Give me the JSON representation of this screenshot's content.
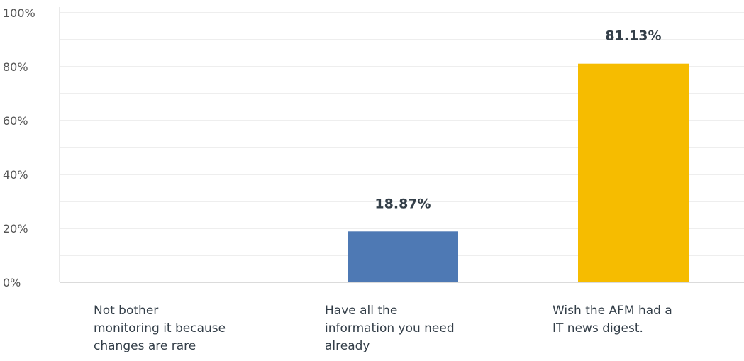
{
  "chart_data": {
    "type": "bar",
    "categories": [
      [
        "Not bother",
        "monitoring it because",
        "changes are rare"
      ],
      [
        "Have all the",
        "information you need",
        "already"
      ],
      [
        "Wish the AFM had a",
        "IT news digest."
      ]
    ],
    "values": [
      0,
      18.87,
      81.13
    ],
    "data_labels": [
      "",
      "18.87%",
      "81.13%"
    ],
    "colors": [
      "#4e79b4",
      "#4e79b4",
      "#f6bc00"
    ],
    "yticks": [
      "0%",
      "20%",
      "40%",
      "60%",
      "80%",
      "100%"
    ],
    "ylim": [
      0,
      100
    ],
    "grid": true,
    "grid_color": "#e8e8e8",
    "title": "",
    "xlabel": "",
    "ylabel": ""
  }
}
